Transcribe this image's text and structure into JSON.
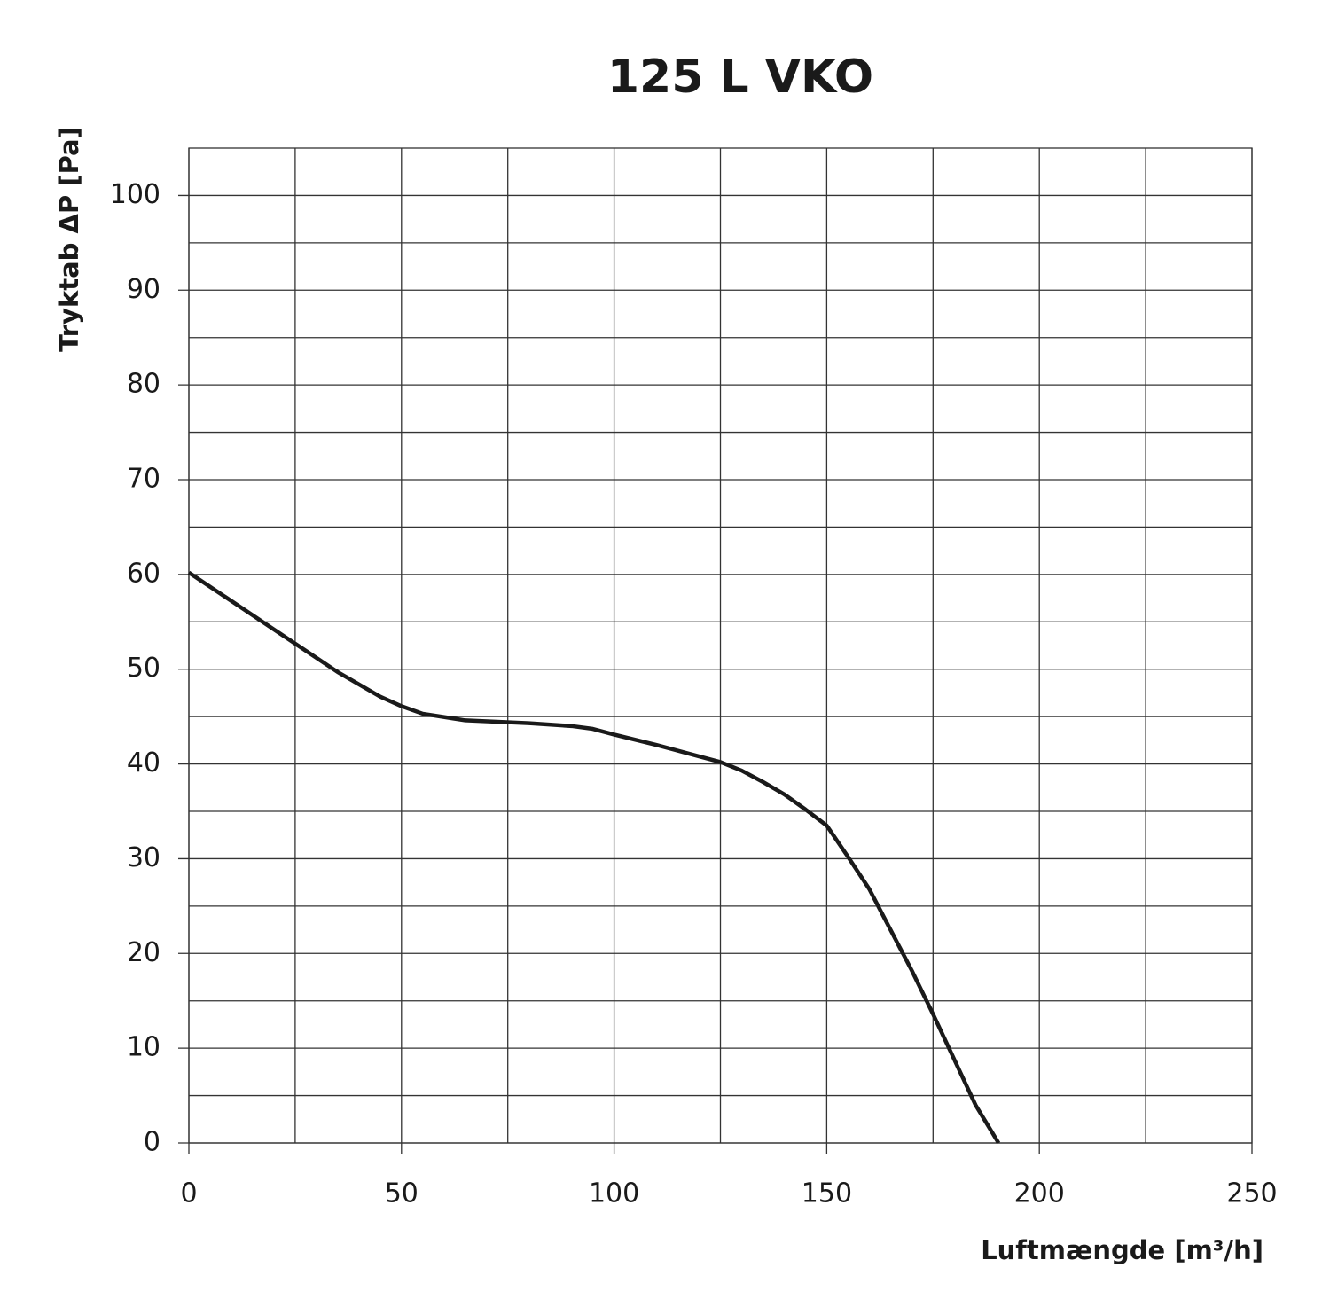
{
  "chart_data": {
    "type": "line",
    "title": "125 L VKO",
    "x_label": "Luftmængde [m³/h]",
    "y_label": "Tryktab ΔP [Pa]",
    "x": [
      0,
      10,
      20,
      30,
      35,
      40,
      45,
      50,
      55,
      65,
      80,
      90,
      95,
      100,
      110,
      120,
      125,
      130,
      135,
      140,
      145,
      150,
      155,
      160,
      165,
      170,
      175,
      180,
      185,
      190.4
    ],
    "series": [
      {
        "name": "125 L VKO",
        "color": "#1a1a1a",
        "values": [
          60.2,
          57.2,
          54.2,
          51.2,
          49.7,
          48.4,
          47.1,
          46.1,
          45.3,
          44.6,
          44.3,
          44.0,
          43.7,
          43.1,
          42.0,
          40.8,
          40.2,
          39.3,
          38.1,
          36.8,
          35.2,
          33.5,
          30.2,
          26.8,
          22.5,
          18.2,
          13.6,
          8.8,
          4.0,
          0
        ]
      }
    ],
    "xlim": [
      0,
      250
    ],
    "ylim": [
      0,
      105
    ],
    "xticks": [
      0,
      50,
      100,
      150,
      200,
      250
    ],
    "yticks": [
      0,
      10,
      20,
      30,
      40,
      50,
      60,
      70,
      80,
      90,
      100
    ],
    "x_minor_grid": [
      25,
      75,
      125,
      175,
      225
    ],
    "y_minor_grid": [
      5,
      15,
      25,
      35,
      45,
      55,
      65,
      75,
      85,
      95
    ],
    "grid": true
  }
}
